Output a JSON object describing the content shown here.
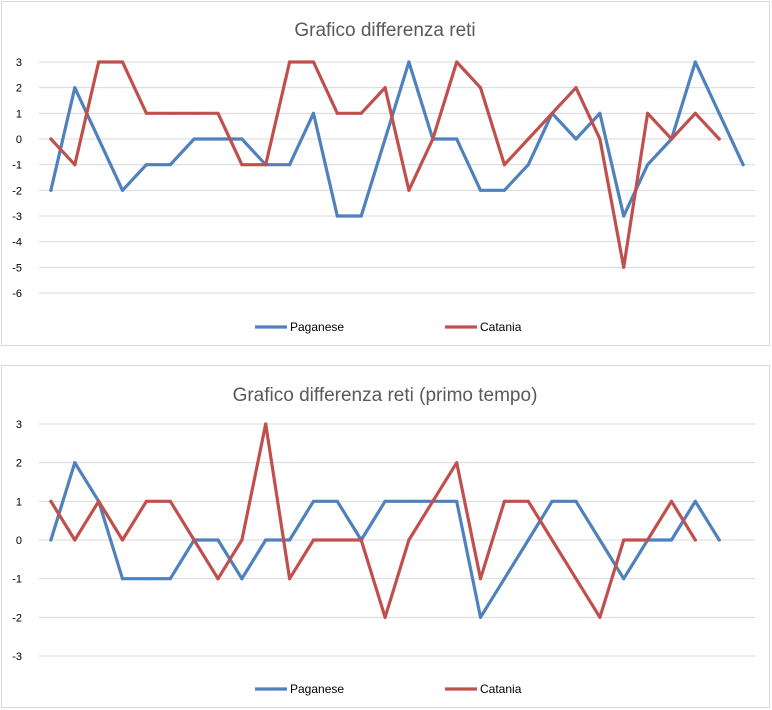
{
  "colors": {
    "paganese": "#4f81bd",
    "catania": "#c0504d",
    "grid": "#d9d9d9",
    "text": "#595959"
  },
  "chart_data": [
    {
      "type": "line",
      "title": "Grafico differenza reti",
      "ylim": [
        -6,
        3
      ],
      "yticks": [
        3,
        2,
        1,
        0,
        -1,
        -2,
        -3,
        -4,
        -5,
        -6
      ],
      "grid": true,
      "legend_position": "bottom",
      "series": [
        {
          "name": "Paganese",
          "values": [
            -2,
            2,
            0,
            -2,
            -1,
            -1,
            0,
            0,
            0,
            -1,
            -1,
            1,
            -3,
            -3,
            0,
            3,
            0,
            0,
            -2,
            -2,
            -1,
            1,
            0,
            1,
            -3,
            -1,
            0,
            3,
            1,
            -1
          ]
        },
        {
          "name": "Catania",
          "values": [
            0,
            -1,
            3,
            3,
            1,
            1,
            1,
            1,
            -1,
            -1,
            3,
            3,
            1,
            1,
            2,
            -2,
            0,
            3,
            2,
            -1,
            0,
            1,
            2,
            0,
            -5,
            1,
            0,
            1,
            0
          ]
        }
      ]
    },
    {
      "type": "line",
      "title": "Grafico differenza reti (primo tempo)",
      "ylim": [
        -3,
        3
      ],
      "yticks": [
        3,
        2,
        1,
        0,
        -1,
        -2,
        -3
      ],
      "grid": true,
      "legend_position": "bottom",
      "series": [
        {
          "name": "Paganese",
          "values": [
            0,
            2,
            1,
            -1,
            -1,
            -1,
            0,
            0,
            -1,
            0,
            0,
            1,
            1,
            0,
            1,
            1,
            1,
            1,
            -2,
            -1,
            0,
            1,
            1,
            0,
            -1,
            0,
            0,
            1,
            0
          ]
        },
        {
          "name": "Catania",
          "values": [
            1,
            0,
            1,
            0,
            1,
            1,
            0,
            -1,
            0,
            3,
            -1,
            0,
            0,
            0,
            -2,
            0,
            1,
            2,
            -1,
            1,
            1,
            0,
            -1,
            -2,
            0,
            0,
            1,
            0
          ]
        }
      ]
    }
  ]
}
